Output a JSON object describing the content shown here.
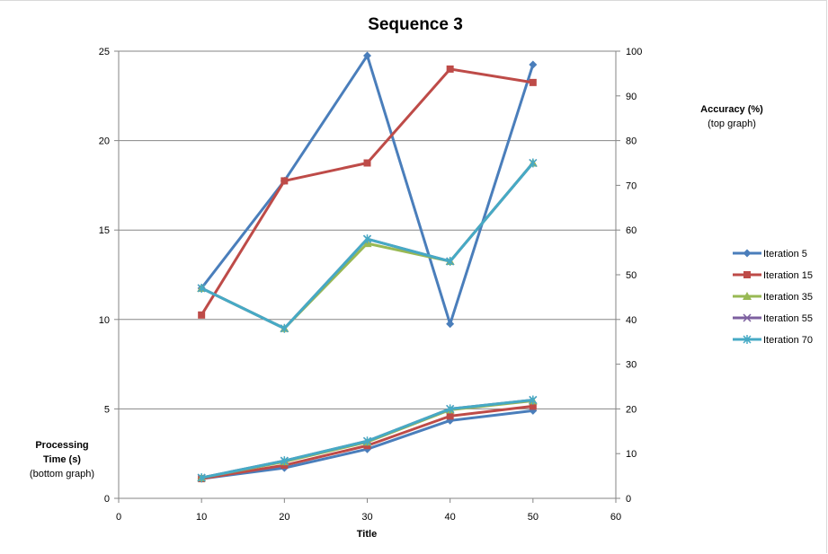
{
  "chart_data": {
    "type": "line",
    "title": "Sequence 3",
    "x_label": "Title",
    "x_ticks": [
      "0",
      "10",
      "20",
      "30",
      "40",
      "50",
      "60"
    ],
    "xlim": [
      0,
      60
    ],
    "y_left": {
      "label_lines": [
        "Processing",
        "Time (s)",
        "(bottom graph)"
      ],
      "ticks": [
        "0",
        "5",
        "10",
        "15",
        "20",
        "25"
      ],
      "lim": [
        0,
        25
      ]
    },
    "y_right": {
      "label_lines": [
        "Accuracy  (%)",
        "(top graph)"
      ],
      "ticks": [
        "0",
        "10",
        "20",
        "30",
        "40",
        "50",
        "60",
        "70",
        "80",
        "90",
        "100"
      ],
      "lim": [
        0,
        100
      ]
    },
    "grid": "horizontal",
    "legend_position": "right",
    "x": [
      10,
      20,
      30,
      40,
      50
    ],
    "series": [
      {
        "name": "Iteration 5",
        "color": "#4a7ebb",
        "marker": "diamond",
        "accuracy": [
          47,
          71,
          99,
          39,
          97
        ],
        "time": [
          1.1,
          1.7,
          2.75,
          4.35,
          4.9
        ]
      },
      {
        "name": "Iteration 15",
        "color": "#be4b48",
        "marker": "square",
        "accuracy": [
          41,
          71,
          75,
          96,
          93
        ],
        "time": [
          1.1,
          1.85,
          2.95,
          4.6,
          5.15
        ]
      },
      {
        "name": "Iteration 35",
        "color": "#98b954",
        "marker": "triangle",
        "accuracy": [
          47,
          38,
          57,
          53,
          75
        ],
        "time": [
          1.15,
          2.05,
          3.15,
          4.95,
          5.45
        ]
      },
      {
        "name": "Iteration 55",
        "color": "#7d60a0",
        "marker": "x",
        "accuracy": [
          47,
          38,
          58,
          53,
          75
        ],
        "time": [
          1.15,
          2.1,
          3.2,
          5.0,
          5.5
        ]
      },
      {
        "name": "Iteration 70",
        "color": "#46aac5",
        "marker": "star",
        "accuracy": [
          47,
          38,
          58,
          53,
          75
        ],
        "time": [
          1.15,
          2.1,
          3.2,
          5.0,
          5.5
        ]
      }
    ]
  }
}
